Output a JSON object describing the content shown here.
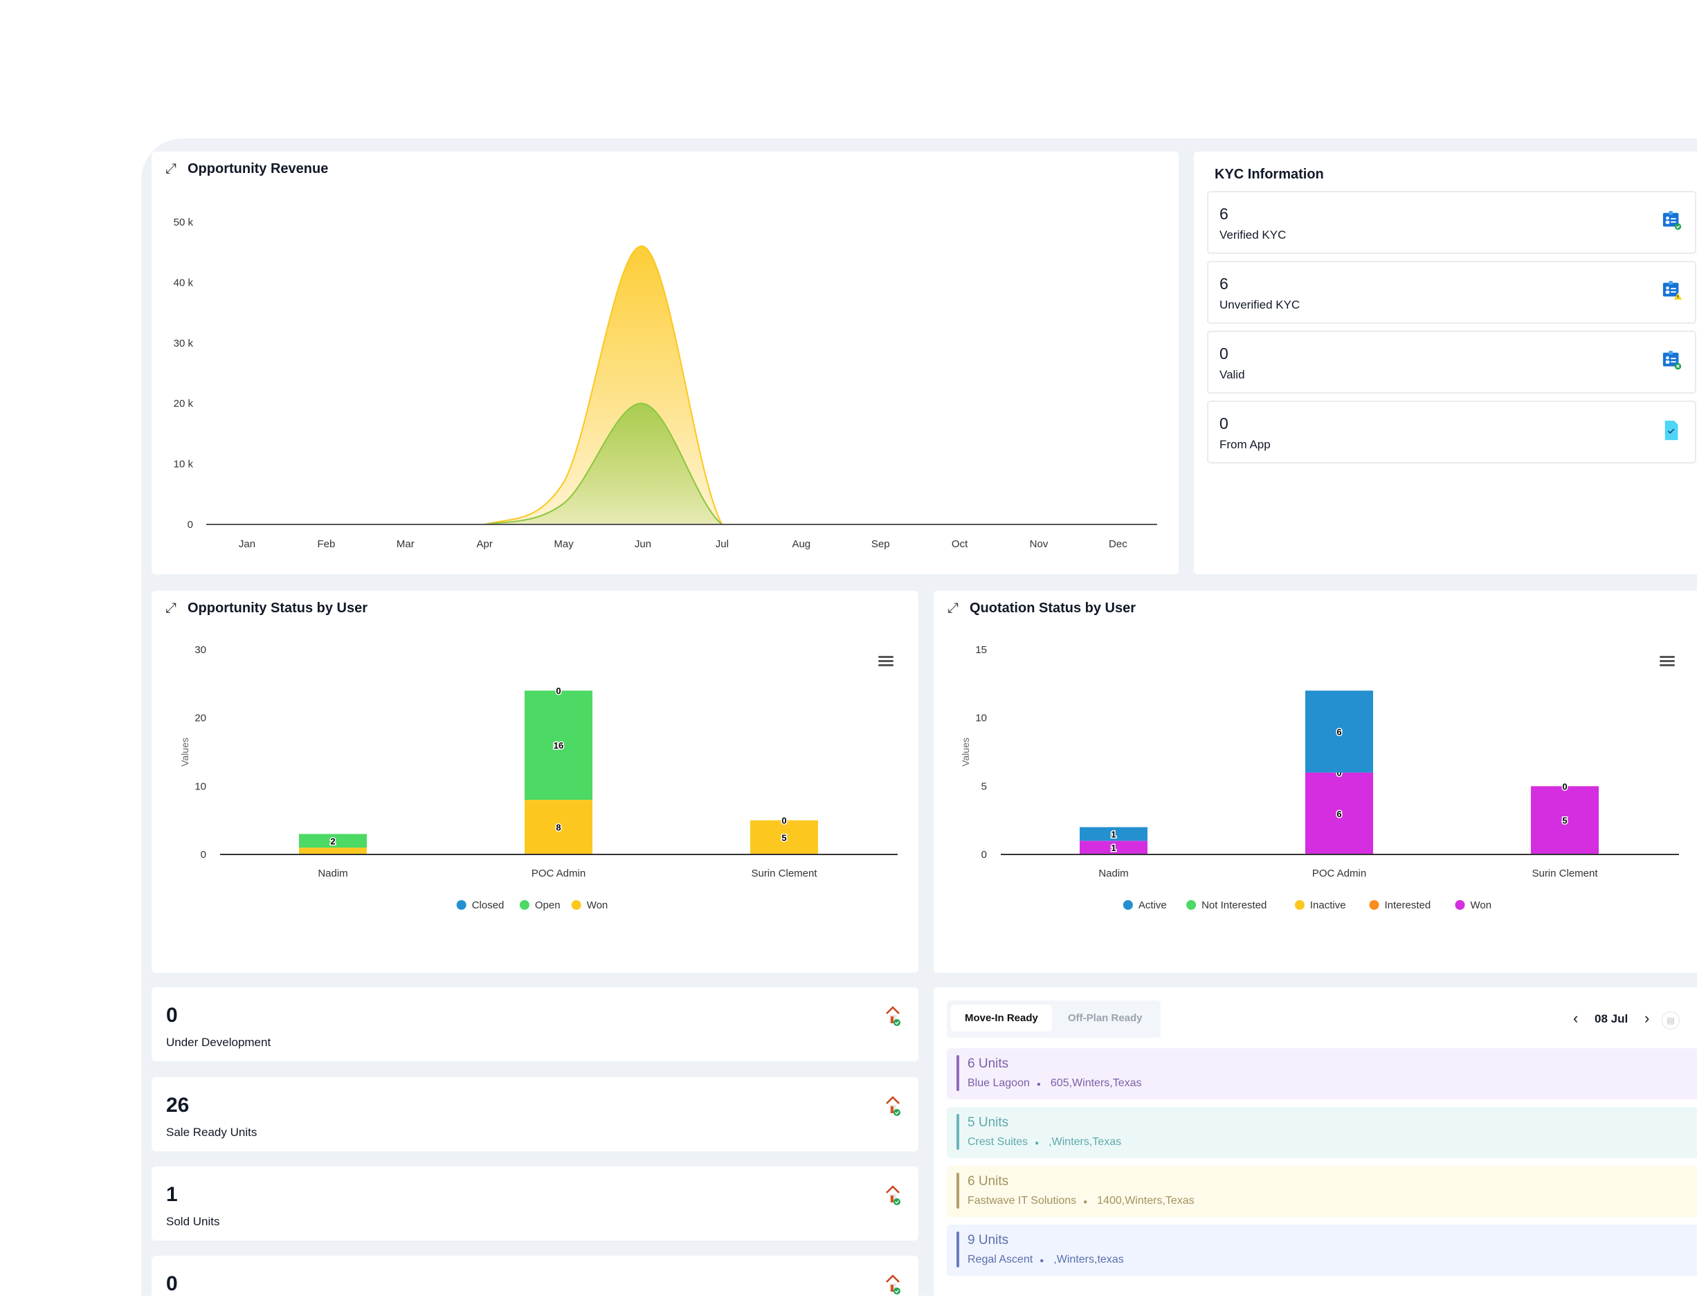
{
  "revenue": {
    "title": "Opportunity Revenue",
    "chart_data": {
      "type": "area",
      "categories": [
        "Jan",
        "Feb",
        "Mar",
        "Apr",
        "May",
        "Jun",
        "Jul",
        "Aug",
        "Sep",
        "Oct",
        "Nov",
        "Dec"
      ],
      "y_ticks": [
        "0",
        "10 k",
        "20 k",
        "30 k",
        "40 k",
        "50 k"
      ],
      "ylim": [
        0,
        50000
      ],
      "grid": false,
      "series": [
        {
          "color": "#fcc820",
          "values": [
            0,
            0,
            0,
            0,
            7000,
            46000,
            0,
            0,
            0,
            0,
            0,
            0
          ]
        },
        {
          "color": "#8cc63f",
          "values": [
            0,
            0,
            0,
            0,
            3500,
            20000,
            0,
            0,
            0,
            0,
            0,
            0
          ]
        }
      ]
    }
  },
  "kyc": {
    "title": "KYC Information",
    "items": [
      {
        "value": "6",
        "label": "Verified KYC",
        "icon": "id-card-check-icon"
      },
      {
        "value": "6",
        "label": "Unverified KYC",
        "icon": "id-card-warning-icon"
      },
      {
        "value": "0",
        "label": "Valid",
        "icon": "id-card-x-icon"
      },
      {
        "value": "0",
        "label": "From App",
        "icon": "document-check-icon"
      }
    ]
  },
  "opp_status": {
    "title": "Opportunity Status by User",
    "chart_data": {
      "type": "bar",
      "stacked": true,
      "categories": [
        "Nadim",
        "POC Admin",
        "Surin Clement"
      ],
      "ylabel": "Values",
      "y_ticks": [
        "0",
        "10",
        "20",
        "30"
      ],
      "ylim": [
        0,
        30
      ],
      "legend": "bottom",
      "series": [
        {
          "name": "Won",
          "color": "#fcc820",
          "values": [
            1,
            8,
            5
          ],
          "labels": [
            null,
            "8",
            "5"
          ]
        },
        {
          "name": "Open",
          "color": "#4cd964",
          "values": [
            2,
            16,
            0
          ],
          "labels": [
            "2",
            "16",
            "0"
          ]
        },
        {
          "name": "Closed",
          "color": "#2490d0",
          "values": [
            0,
            0,
            0
          ],
          "labels": [
            null,
            "0",
            null
          ]
        }
      ],
      "legend_order": [
        "Closed",
        "Open",
        "Won"
      ]
    }
  },
  "quote_status": {
    "title": "Quotation Status by User",
    "chart_data": {
      "type": "bar",
      "stacked": true,
      "categories": [
        "Nadim",
        "POC Admin",
        "Surin Clement"
      ],
      "ylabel": "Values",
      "y_ticks": [
        "0",
        "5",
        "10",
        "15"
      ],
      "ylim": [
        0,
        15
      ],
      "legend": "bottom",
      "series": [
        {
          "name": "Won",
          "color": "#d42ee0",
          "values": [
            1,
            6,
            5
          ],
          "labels": [
            "1",
            "6",
            "5"
          ]
        },
        {
          "name": "Interested",
          "color": "#fb8c1c",
          "values": [
            0,
            0,
            0
          ],
          "labels": [
            null,
            "0",
            "0"
          ]
        },
        {
          "name": "Inactive",
          "color": "#fcc820",
          "values": [
            0,
            0,
            0
          ],
          "labels": [
            null,
            null,
            null
          ]
        },
        {
          "name": "Not Interested",
          "color": "#4cd964",
          "values": [
            0,
            0,
            0
          ],
          "labels": [
            null,
            null,
            null
          ]
        },
        {
          "name": "Active",
          "color": "#2490d0",
          "values": [
            1,
            6,
            0
          ],
          "labels": [
            "1",
            "6",
            null
          ]
        }
      ],
      "legend_order": [
        "Active",
        "Not Interested",
        "Inactive",
        "Interested",
        "Won"
      ]
    }
  },
  "stats": [
    {
      "value": "0",
      "label": "Under Development"
    },
    {
      "value": "26",
      "label": "Sale Ready Units"
    },
    {
      "value": "1",
      "label": "Sold Units"
    },
    {
      "value": "0",
      "label": ""
    }
  ],
  "units": {
    "tabs": [
      "Move-In Ready",
      "Off-Plan Ready"
    ],
    "active_tab": "Move-In Ready",
    "date": "08 Jul",
    "items": [
      {
        "units": "6 Units",
        "name": "Blue Lagoon",
        "address": "605,Winters,Texas",
        "bg": "#f6f0fd",
        "accent": "#8e6bbf",
        "text": "#7b5fa8"
      },
      {
        "units": "5 Units",
        "name": "Crest Suites",
        "address": ",Winters,Texas",
        "bg": "#ecf8f8",
        "accent": "#6bb5b8",
        "text": "#5fa8ab"
      },
      {
        "units": "6 Units",
        "name": "Fastwave IT Solutions",
        "address": "1400,Winters,Texas",
        "bg": "#fefbea",
        "accent": "#b3a06a",
        "text": "#a39260"
      },
      {
        "units": "9 Units",
        "name": "Regal Ascent",
        "address": ",Winters,texas",
        "bg": "#f0f4fe",
        "accent": "#6a7cbf",
        "text": "#5a6fae"
      }
    ]
  }
}
